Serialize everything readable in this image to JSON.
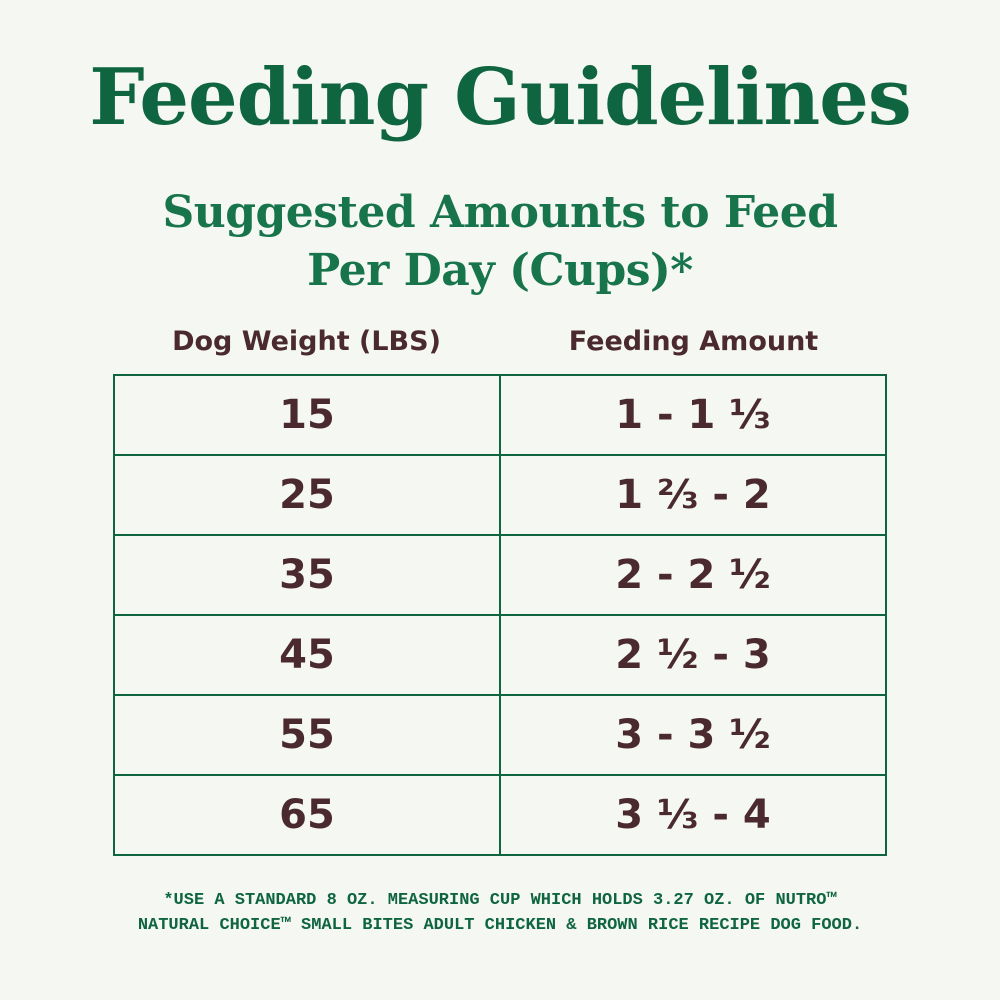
{
  "title": "Feeding Guidelines",
  "subtitle_line1": "Suggested Amounts to Feed",
  "subtitle_line2": "Per Day (Cups)*",
  "table": {
    "headers": [
      "Dog Weight (LBS)",
      "Feeding Amount"
    ],
    "rows": [
      {
        "weight": "15",
        "amount": "1 - 1 ⅓"
      },
      {
        "weight": "25",
        "amount": "1 ⅔ - 2"
      },
      {
        "weight": "35",
        "amount": "2 - 2 ½"
      },
      {
        "weight": "45",
        "amount": "2 ½ - 3"
      },
      {
        "weight": "55",
        "amount": "3 - 3 ½"
      },
      {
        "weight": "65",
        "amount": "3 ⅓ - 4"
      }
    ]
  },
  "footnote_line1": "*USE A STANDARD 8 OZ. MEASURING CUP WHICH HOLDS 3.27 OZ. OF NUTRO™",
  "footnote_line2": "NATURAL CHOICE™ SMALL BITES ADULT CHICKEN & BROWN RICE RECIPE DOG FOOD.",
  "colors": {
    "green": "#0f6540",
    "maroon": "#4a2a2e",
    "background": "#f5f7f2"
  }
}
